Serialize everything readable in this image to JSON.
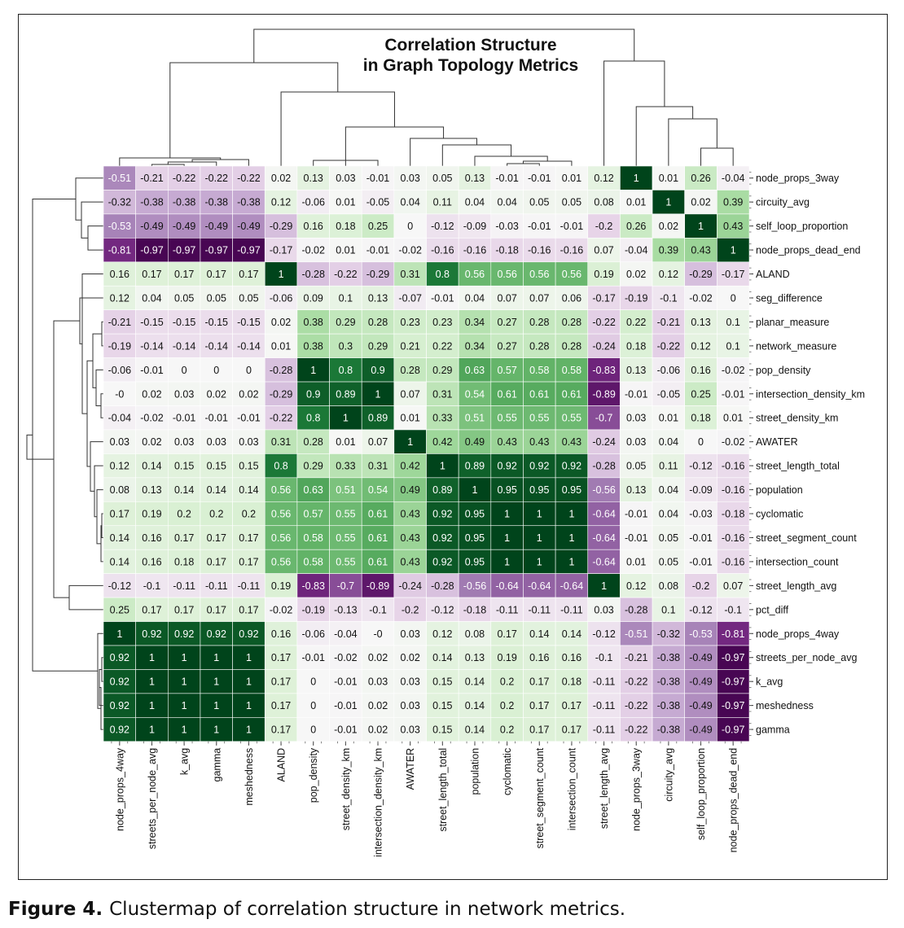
{
  "caption": {
    "label": "Figure 4.",
    "text": "Clustermap of correlation structure in network metrics."
  },
  "chart_data": {
    "type": "heatmap",
    "title_lines": [
      "Correlation Structure",
      "in Graph Topology Metrics"
    ],
    "colormap": "PRGn",
    "vmin": -1,
    "vmax": 1,
    "colors": {
      "neg": "#40004b",
      "mid": "#f7f7f7",
      "pos": "#00441b"
    },
    "row_labels": [
      "node_props_3way",
      "circuity_avg",
      "self_loop_proportion",
      "node_props_dead_end",
      "ALAND",
      "seg_difference",
      "planar_measure",
      "network_measure",
      "pop_density",
      "intersection_density_km",
      "street_density_km",
      "AWATER",
      "street_length_total",
      "population",
      "cyclomatic",
      "street_segment_count",
      "intersection_count",
      "street_length_avg",
      "pct_diff",
      "node_props_4way",
      "streets_per_node_avg",
      "k_avg",
      "meshedness",
      "gamma"
    ],
    "col_labels": [
      "node_props_4way",
      "streets_per_node_avg",
      "k_avg",
      "gamma",
      "meshedness",
      "ALAND",
      "pop_density",
      "street_density_km",
      "intersection_density_km",
      "AWATER",
      "street_length_total",
      "population",
      "cyclomatic",
      "street_segment_count",
      "intersection_count",
      "street_length_avg",
      "node_props_3way",
      "circuity_avg",
      "self_loop_proportion",
      "node_props_dead_end"
    ],
    "values": [
      [
        "-0.51",
        "-0.21",
        "-0.22",
        "-0.22",
        "-0.22",
        "0.02",
        "0.13",
        "0.03",
        "-0.01",
        "0.03",
        "0.05",
        "0.13",
        "-0.01",
        "-0.01",
        "0.01",
        "0.12",
        "1",
        "0.01",
        "0.26",
        "-0.04"
      ],
      [
        "-0.32",
        "-0.38",
        "-0.38",
        "-0.38",
        "-0.38",
        "0.12",
        "-0.06",
        "0.01",
        "-0.05",
        "0.04",
        "0.11",
        "0.04",
        "0.04",
        "0.05",
        "0.05",
        "0.08",
        "0.01",
        "1",
        "0.02",
        "0.39"
      ],
      [
        "-0.53",
        "-0.49",
        "-0.49",
        "-0.49",
        "-0.49",
        "-0.29",
        "0.16",
        "0.18",
        "0.25",
        "0",
        "-0.12",
        "-0.09",
        "-0.03",
        "-0.01",
        "-0.01",
        "-0.2",
        "0.26",
        "0.02",
        "1",
        "0.43"
      ],
      [
        "-0.81",
        "-0.97",
        "-0.97",
        "-0.97",
        "-0.97",
        "-0.17",
        "-0.02",
        "0.01",
        "-0.01",
        "-0.02",
        "-0.16",
        "-0.16",
        "-0.18",
        "-0.16",
        "-0.16",
        "0.07",
        "-0.04",
        "0.39",
        "0.43",
        "1"
      ],
      [
        "0.16",
        "0.17",
        "0.17",
        "0.17",
        "0.17",
        "1",
        "-0.28",
        "-0.22",
        "-0.29",
        "0.31",
        "0.8",
        "0.56",
        "0.56",
        "0.56",
        "0.56",
        "0.19",
        "0.02",
        "0.12",
        "-0.29",
        "-0.17"
      ],
      [
        "0.12",
        "0.04",
        "0.05",
        "0.05",
        "0.05",
        "-0.06",
        "0.09",
        "0.1",
        "0.13",
        "-0.07",
        "-0.01",
        "0.04",
        "0.07",
        "0.07",
        "0.06",
        "-0.17",
        "-0.19",
        "-0.1",
        "-0.02",
        "0"
      ],
      [
        "-0.21",
        "-0.15",
        "-0.15",
        "-0.15",
        "-0.15",
        "0.02",
        "0.38",
        "0.29",
        "0.28",
        "0.23",
        "0.23",
        "0.34",
        "0.27",
        "0.28",
        "0.28",
        "-0.22",
        "0.22",
        "-0.21",
        "0.13",
        "0.1"
      ],
      [
        "-0.19",
        "-0.14",
        "-0.14",
        "-0.14",
        "-0.14",
        "0.01",
        "0.38",
        "0.3",
        "0.29",
        "0.21",
        "0.22",
        "0.34",
        "0.27",
        "0.28",
        "0.28",
        "-0.24",
        "0.18",
        "-0.22",
        "0.12",
        "0.1"
      ],
      [
        "-0.06",
        "-0.01",
        "0",
        "0",
        "0",
        "-0.28",
        "1",
        "0.8",
        "0.9",
        "0.28",
        "0.29",
        "0.63",
        "0.57",
        "0.58",
        "0.58",
        "-0.83",
        "0.13",
        "-0.06",
        "0.16",
        "-0.02"
      ],
      [
        "-0",
        "0.02",
        "0.03",
        "0.02",
        "0.02",
        "-0.29",
        "0.9",
        "0.89",
        "1",
        "0.07",
        "0.31",
        "0.54",
        "0.61",
        "0.61",
        "0.61",
        "-0.89",
        "-0.01",
        "-0.05",
        "0.25",
        "-0.01"
      ],
      [
        "-0.04",
        "-0.02",
        "-0.01",
        "-0.01",
        "-0.01",
        "-0.22",
        "0.8",
        "1",
        "0.89",
        "0.01",
        "0.33",
        "0.51",
        "0.55",
        "0.55",
        "0.55",
        "-0.7",
        "0.03",
        "0.01",
        "0.18",
        "0.01"
      ],
      [
        "0.03",
        "0.02",
        "0.03",
        "0.03",
        "0.03",
        "0.31",
        "0.28",
        "0.01",
        "0.07",
        "1",
        "0.42",
        "0.49",
        "0.43",
        "0.43",
        "0.43",
        "-0.24",
        "0.03",
        "0.04",
        "0",
        "-0.02"
      ],
      [
        "0.12",
        "0.14",
        "0.15",
        "0.15",
        "0.15",
        "0.8",
        "0.29",
        "0.33",
        "0.31",
        "0.42",
        "1",
        "0.89",
        "0.92",
        "0.92",
        "0.92",
        "-0.28",
        "0.05",
        "0.11",
        "-0.12",
        "-0.16"
      ],
      [
        "0.08",
        "0.13",
        "0.14",
        "0.14",
        "0.14",
        "0.56",
        "0.63",
        "0.51",
        "0.54",
        "0.49",
        "0.89",
        "1",
        "0.95",
        "0.95",
        "0.95",
        "-0.56",
        "0.13",
        "0.04",
        "-0.09",
        "-0.16"
      ],
      [
        "0.17",
        "0.19",
        "0.2",
        "0.2",
        "0.2",
        "0.56",
        "0.57",
        "0.55",
        "0.61",
        "0.43",
        "0.92",
        "0.95",
        "1",
        "1",
        "1",
        "-0.64",
        "-0.01",
        "0.04",
        "-0.03",
        "-0.18"
      ],
      [
        "0.14",
        "0.16",
        "0.17",
        "0.17",
        "0.17",
        "0.56",
        "0.58",
        "0.55",
        "0.61",
        "0.43",
        "0.92",
        "0.95",
        "1",
        "1",
        "1",
        "-0.64",
        "-0.01",
        "0.05",
        "-0.01",
        "-0.16"
      ],
      [
        "0.14",
        "0.16",
        "0.18",
        "0.17",
        "0.17",
        "0.56",
        "0.58",
        "0.55",
        "0.61",
        "0.43",
        "0.92",
        "0.95",
        "1",
        "1",
        "1",
        "-0.64",
        "0.01",
        "0.05",
        "-0.01",
        "-0.16"
      ],
      [
        "-0.12",
        "-0.1",
        "-0.11",
        "-0.11",
        "-0.11",
        "0.19",
        "-0.83",
        "-0.7",
        "-0.89",
        "-0.24",
        "-0.28",
        "-0.56",
        "-0.64",
        "-0.64",
        "-0.64",
        "1",
        "0.12",
        "0.08",
        "-0.2",
        "0.07"
      ],
      [
        "0.25",
        "0.17",
        "0.17",
        "0.17",
        "0.17",
        "-0.02",
        "-0.19",
        "-0.13",
        "-0.1",
        "-0.2",
        "-0.12",
        "-0.18",
        "-0.11",
        "-0.11",
        "-0.11",
        "0.03",
        "-0.28",
        "0.1",
        "-0.12",
        "-0.1"
      ],
      [
        "1",
        "0.92",
        "0.92",
        "0.92",
        "0.92",
        "0.16",
        "-0.06",
        "-0.04",
        "-0",
        "0.03",
        "0.12",
        "0.08",
        "0.17",
        "0.14",
        "0.14",
        "-0.12",
        "-0.51",
        "-0.32",
        "-0.53",
        "-0.81"
      ],
      [
        "0.92",
        "1",
        "1",
        "1",
        "1",
        "0.17",
        "-0.01",
        "-0.02",
        "0.02",
        "0.02",
        "0.14",
        "0.13",
        "0.19",
        "0.16",
        "0.16",
        "-0.1",
        "-0.21",
        "-0.38",
        "-0.49",
        "-0.97"
      ],
      [
        "0.92",
        "1",
        "1",
        "1",
        "1",
        "0.17",
        "0",
        "-0.01",
        "0.03",
        "0.03",
        "0.15",
        "0.14",
        "0.2",
        "0.17",
        "0.18",
        "-0.11",
        "-0.22",
        "-0.38",
        "-0.49",
        "-0.97"
      ],
      [
        "0.92",
        "1",
        "1",
        "1",
        "1",
        "0.17",
        "0",
        "-0.01",
        "0.02",
        "0.03",
        "0.15",
        "0.14",
        "0.2",
        "0.17",
        "0.17",
        "-0.11",
        "-0.22",
        "-0.38",
        "-0.49",
        "-0.97"
      ],
      [
        "0.92",
        "1",
        "1",
        "1",
        "1",
        "0.17",
        "0",
        "-0.01",
        "0.02",
        "0.03",
        "0.15",
        "0.14",
        "0.2",
        "0.17",
        "0.17",
        "-0.11",
        "-0.22",
        "-0.38",
        "-0.49",
        "-0.97"
      ]
    ],
    "grid": true,
    "dendrograms": [
      "top",
      "left"
    ]
  }
}
